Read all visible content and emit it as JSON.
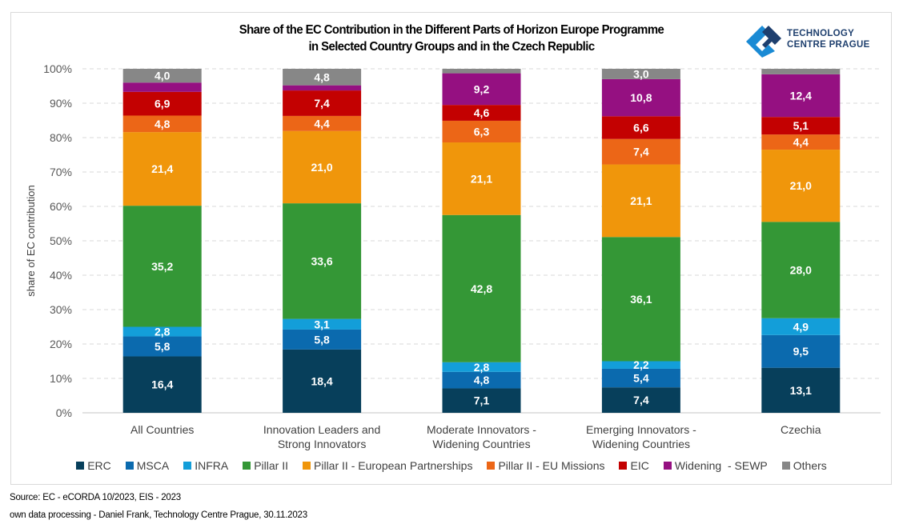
{
  "header": {
    "title_line1": "Share of the EC Contribution in the Different Parts of Horizon Europe Programme",
    "title_line2": "in Selected Country Groups and in the Czech Republic",
    "logo_line1": "TECHNOLOGY",
    "logo_line2": "CENTRE PRAGUE",
    "logo_colors": {
      "light": "#1a8ad4",
      "dark": "#1e3f6e"
    }
  },
  "footer": {
    "source": "Source: EC - eCORDA 10/2023, EIS - 2023",
    "credit": "own data processing - Daniel Frank, Technology Centre Prague, 30.11.2023"
  },
  "chart_data": {
    "type": "bar",
    "stacked": true,
    "title": "Share of the EC Contribution in the Different Parts of Horizon Europe Programme in Selected Country Groups and in the Czech Republic",
    "xlabel": "",
    "ylabel": "share of EC contribution",
    "ylim": [
      0,
      100
    ],
    "yticks": [
      "0%",
      "10%",
      "20%",
      "30%",
      "40%",
      "50%",
      "60%",
      "70%",
      "80%",
      "90%",
      "100%"
    ],
    "grid": true,
    "legend_position": "bottom",
    "categories": [
      [
        "All Countries"
      ],
      [
        "Innovation Leaders and",
        "Strong Innovators"
      ],
      [
        "Moderate Innovators -",
        "Widening Countries"
      ],
      [
        "Emerging Innovators -",
        "Widening Countries"
      ],
      [
        "Czechia"
      ]
    ],
    "series": [
      {
        "name": "ERC",
        "color": "#073f5b",
        "values": [
          16.4,
          18.4,
          7.1,
          7.4,
          13.1
        ],
        "labels": [
          "16,4",
          "18,4",
          "7,1",
          "7,4",
          "13,1"
        ]
      },
      {
        "name": "MSCA",
        "color": "#0b6aae",
        "values": [
          5.8,
          5.8,
          4.8,
          5.4,
          9.5
        ],
        "labels": [
          "5,8",
          "5,8",
          "4,8",
          "5,4",
          "9,5"
        ]
      },
      {
        "name": "INFRA",
        "color": "#139ed9",
        "values": [
          2.8,
          3.1,
          2.8,
          2.2,
          4.9
        ],
        "labels": [
          "2,8",
          "3,1",
          "2,8",
          "2,2",
          "4,9"
        ]
      },
      {
        "name": "Pillar II",
        "color": "#349736",
        "values": [
          35.2,
          33.6,
          42.8,
          36.1,
          28.0
        ],
        "labels": [
          "35,2",
          "33,6",
          "42,8",
          "36,1",
          "28,0"
        ]
      },
      {
        "name": "Pillar II - European Partnerships",
        "color": "#f0960b",
        "values": [
          21.4,
          21.0,
          21.1,
          21.1,
          21.0
        ],
        "labels": [
          "21,4",
          "21,0",
          "21,1",
          "21,1",
          "21,0"
        ]
      },
      {
        "name": "Pillar II - EU Missions",
        "color": "#ec6617",
        "values": [
          4.8,
          4.4,
          6.3,
          7.4,
          4.4
        ],
        "labels": [
          "4,8",
          "4,4",
          "6,3",
          "7,4",
          "4,4"
        ]
      },
      {
        "name": "EIC",
        "color": "#c30101",
        "values": [
          6.9,
          7.4,
          4.6,
          6.6,
          5.1
        ],
        "labels": [
          "6,9",
          "7,4",
          "4,6",
          "6,6",
          "5,1"
        ]
      },
      {
        "name": "Widening  - SEWP",
        "color": "#951081",
        "values": [
          2.7,
          1.5,
          9.2,
          10.8,
          12.4
        ],
        "labels": [
          "",
          "",
          "9,2",
          "10,8",
          "12,4"
        ]
      },
      {
        "name": "Others",
        "color": "#878787",
        "values": [
          4.0,
          4.8,
          1.3,
          3.0,
          1.6
        ],
        "labels": [
          "4,0",
          "4,8",
          "",
          "3,0",
          ""
        ]
      }
    ]
  }
}
